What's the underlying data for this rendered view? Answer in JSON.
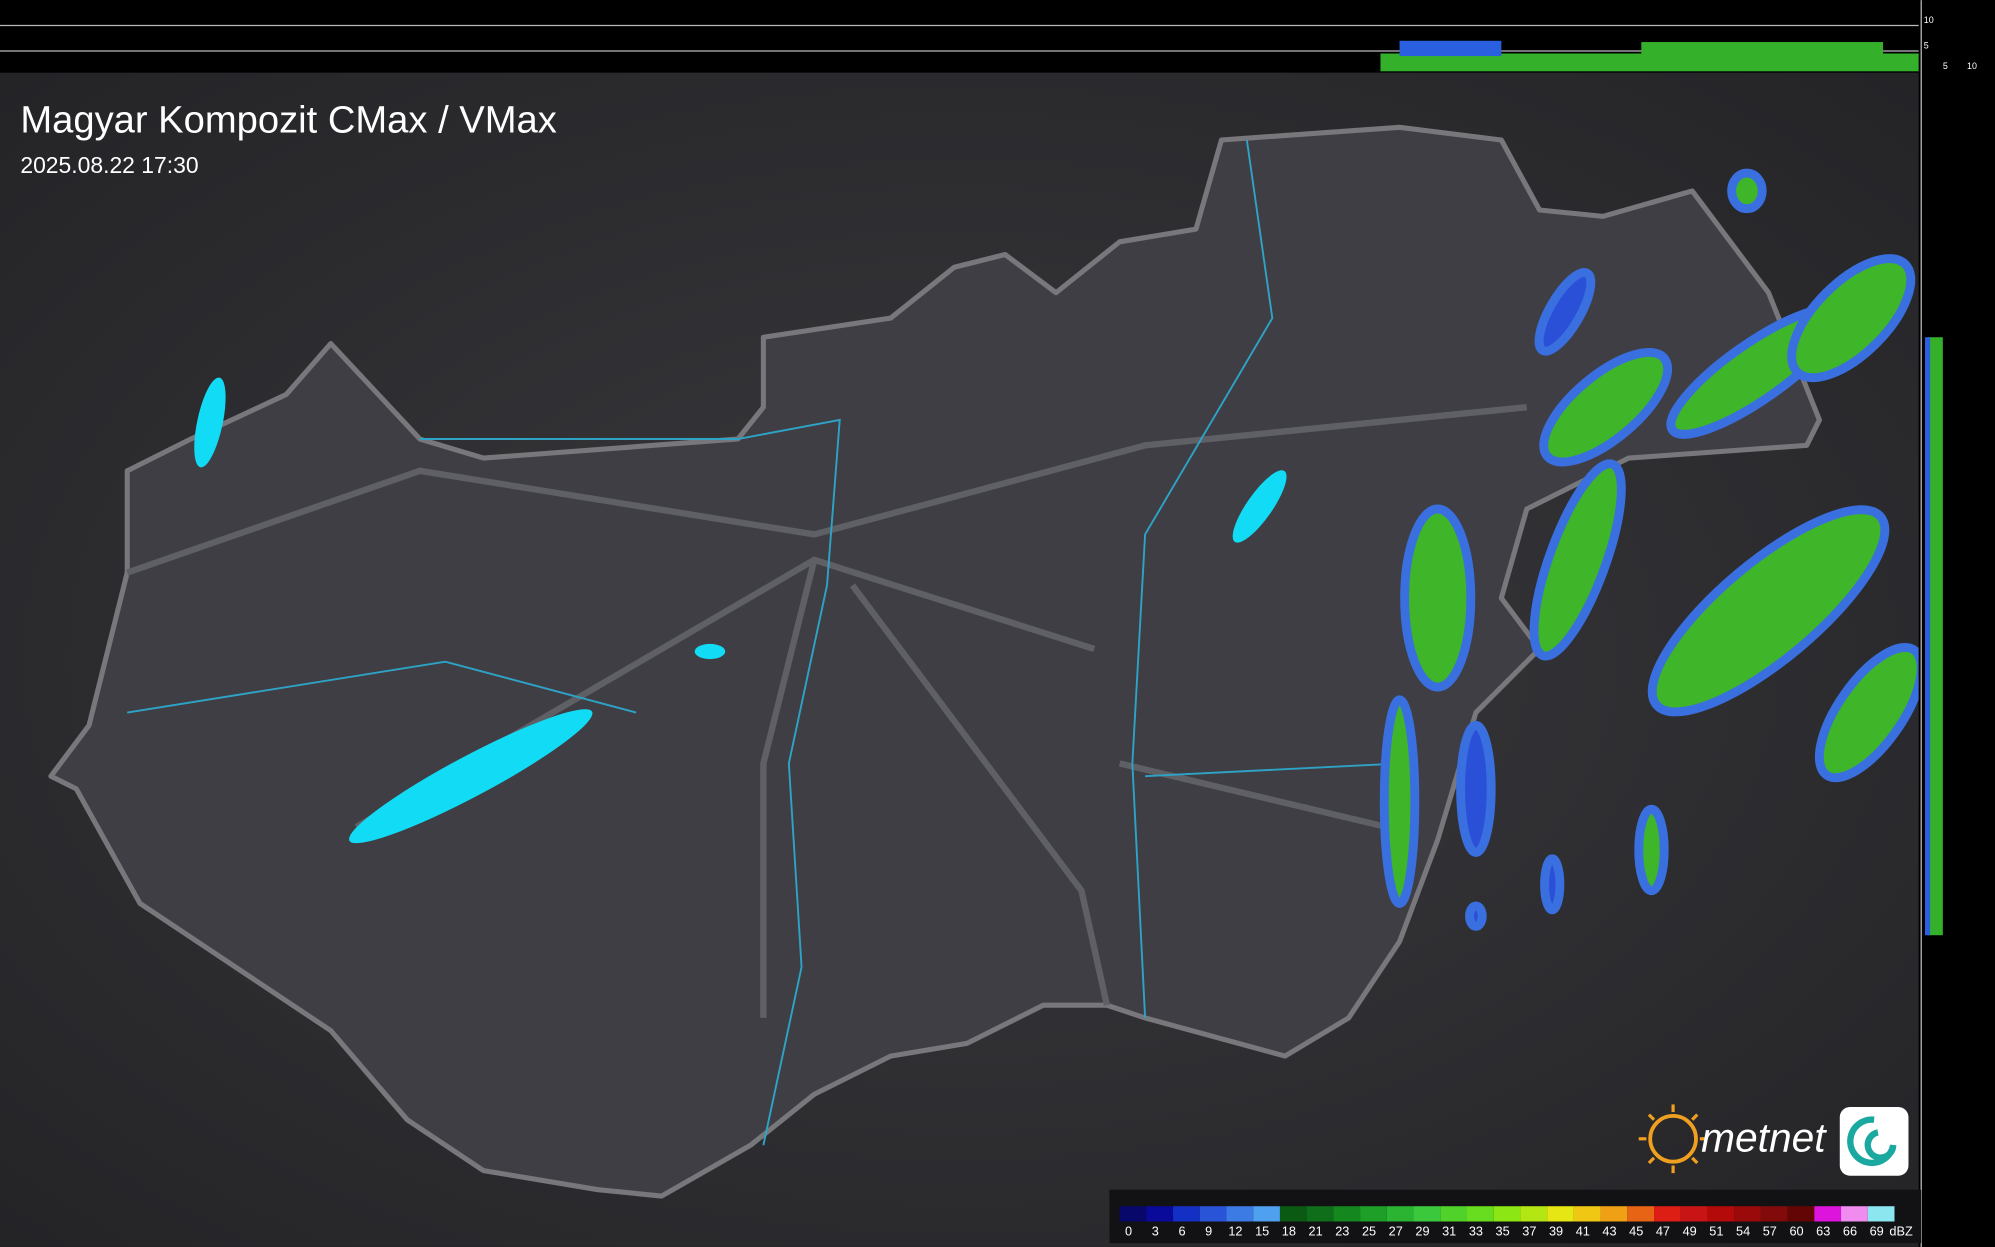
{
  "header": {
    "title": "Magyar Kompozit CMax / VMax",
    "timestamp": "2025.08.22 17:30"
  },
  "profile_axes": {
    "top": [
      10,
      5
    ],
    "right": [
      5,
      10
    ]
  },
  "logo": {
    "text": "metnet"
  },
  "legend": {
    "unit": "dBZ",
    "steps": [
      {
        "value": 0,
        "color": "#08086a"
      },
      {
        "value": 3,
        "color": "#0a0a9a"
      },
      {
        "value": 6,
        "color": "#1430c4"
      },
      {
        "value": 9,
        "color": "#2a54d8"
      },
      {
        "value": 12,
        "color": "#3c7ae4"
      },
      {
        "value": 15,
        "color": "#4fa0ee"
      },
      {
        "value": 18,
        "color": "#0a5a14"
      },
      {
        "value": 21,
        "color": "#0f6e1a"
      },
      {
        "value": 23,
        "color": "#14881e"
      },
      {
        "value": 25,
        "color": "#1ea028"
      },
      {
        "value": 27,
        "color": "#2ab432"
      },
      {
        "value": 29,
        "color": "#3cc83c"
      },
      {
        "value": 31,
        "color": "#50d22a"
      },
      {
        "value": 33,
        "color": "#68dc1e"
      },
      {
        "value": 35,
        "color": "#8ce614"
      },
      {
        "value": 37,
        "color": "#b4e614"
      },
      {
        "value": 39,
        "color": "#e6e614"
      },
      {
        "value": 41,
        "color": "#f0c814"
      },
      {
        "value": 43,
        "color": "#f0a014"
      },
      {
        "value": 45,
        "color": "#e66414"
      },
      {
        "value": 47,
        "color": "#dc1e14"
      },
      {
        "value": 49,
        "color": "#c81414"
      },
      {
        "value": 51,
        "color": "#b40a0a"
      },
      {
        "value": 54,
        "color": "#9b0a0a"
      },
      {
        "value": 57,
        "color": "#820a0a"
      },
      {
        "value": 60,
        "color": "#640505"
      },
      {
        "value": 63,
        "color": "#dc14dc"
      },
      {
        "value": 66,
        "color": "#f08cf0"
      },
      {
        "value": 69,
        "color": "#8ce6f0"
      }
    ]
  }
}
